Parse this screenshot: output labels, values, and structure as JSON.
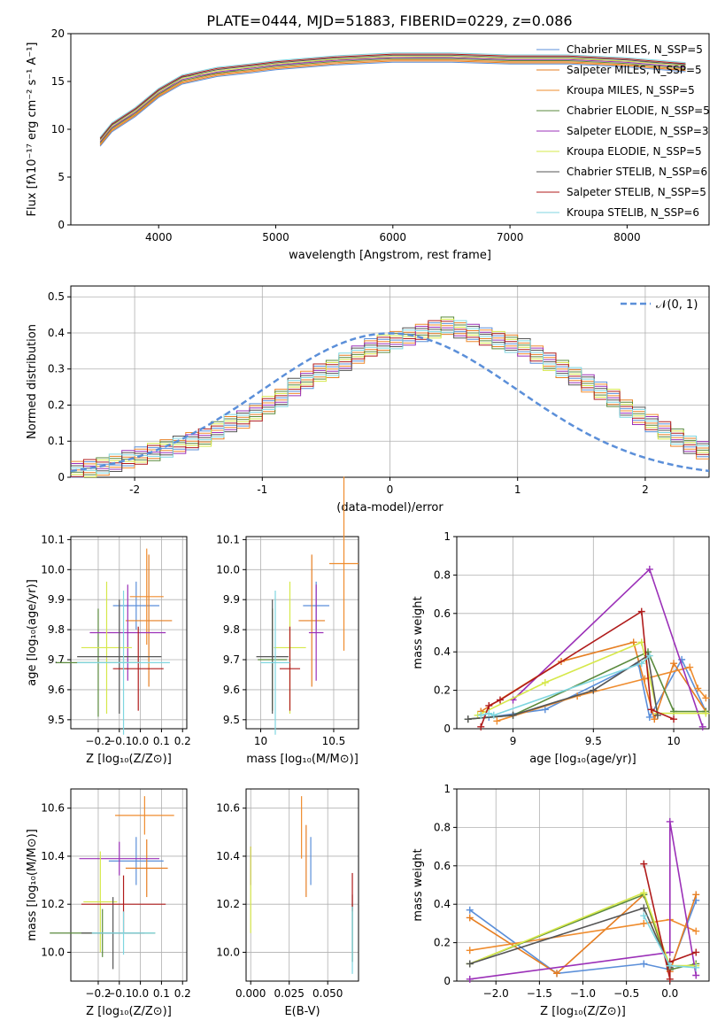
{
  "figure_title": "PLATE=0444, MJD=51883, FIBERID=0229, z=0.086",
  "colors": [
    "#5b8fd9",
    "#e67e22",
    "#ef8c2e",
    "#5a8a3c",
    "#9b30b8",
    "#d6e84a",
    "#555555",
    "#b01b1b",
    "#7fd6e0"
  ],
  "chart_data": [
    {
      "id": "spectrum",
      "type": "line",
      "title": "PLATE=0444, MJD=51883, FIBERID=0229, z=0.086",
      "xlabel": "wavelength [Angstrom, rest frame]",
      "ylabel": "Flux [fλ10⁻¹⁷ erg cm⁻² s⁻¹ A⁻¹]",
      "xlim": [
        3250,
        8700
      ],
      "ylim": [
        0,
        20
      ],
      "xticks": [
        4000,
        5000,
        6000,
        7000,
        8000
      ],
      "yticks": [
        0,
        5,
        10,
        15,
        20
      ],
      "legend_position": "top-right",
      "x": [
        3500,
        3600,
        3800,
        4000,
        4200,
        4500,
        4800,
        5000,
        5500,
        6000,
        6500,
        7000,
        7500,
        8000,
        8500
      ],
      "data_flux": [
        8.5,
        10.5,
        11.5,
        13.5,
        15.5,
        15.8,
        16.5,
        16.8,
        17.3,
        17.5,
        17.6,
        17.4,
        17.4,
        17.1,
        16.8
      ],
      "model_flux": [
        8.7,
        10.2,
        11.8,
        13.8,
        15.2,
        16.0,
        16.4,
        16.7,
        17.2,
        17.5,
        17.5,
        17.3,
        17.3,
        17.0,
        16.5
      ],
      "legend": [
        "Chabrier MILES, N_SSP=5",
        "Salpeter MILES, N_SSP=5",
        "Kroupa MILES, N_SSP=5",
        "Chabrier ELODIE, N_SSP=5",
        "Salpeter ELODIE, N_SSP=3",
        "Kroupa ELODIE, N_SSP=5",
        "Chabrier STELIB, N_SSP=6",
        "Salpeter STELIB, N_SSP=5",
        "Kroupa STELIB, N_SSP=6"
      ]
    },
    {
      "id": "residuals",
      "type": "line",
      "xlabel": "(data-model)/error",
      "ylabel": "Normed distribution",
      "xlim": [
        -2.5,
        2.5
      ],
      "ylim": [
        0,
        0.53
      ],
      "xticks": [
        -2,
        -1,
        0,
        1,
        2
      ],
      "yticks": [
        0.0,
        0.1,
        0.2,
        0.3,
        0.4,
        0.5
      ],
      "grid": true,
      "legend_position": "top-right",
      "legend": [
        "𝒩(0, 1)"
      ],
      "bin_width": 0.1,
      "bin_start": -2.5,
      "histogram_values": [
        0.02,
        0.025,
        0.03,
        0.04,
        0.05,
        0.06,
        0.07,
        0.08,
        0.09,
        0.1,
        0.11,
        0.13,
        0.15,
        0.16,
        0.18,
        0.2,
        0.22,
        0.25,
        0.27,
        0.29,
        0.3,
        0.32,
        0.34,
        0.36,
        0.37,
        0.38,
        0.39,
        0.4,
        0.41,
        0.42,
        0.41,
        0.4,
        0.39,
        0.38,
        0.37,
        0.36,
        0.34,
        0.32,
        0.3,
        0.28,
        0.26,
        0.24,
        0.22,
        0.19,
        0.17,
        0.15,
        0.13,
        0.11,
        0.09,
        0.075
      ]
    },
    {
      "id": "age_vs_Z",
      "type": "scatter",
      "xlabel": "Z [log₁₀(Z/Z⊙)]",
      "ylabel": "age  [log₁₀(age/yr)]",
      "xlim": [
        -0.33,
        0.22
      ],
      "ylim": [
        9.47,
        10.11
      ],
      "xticks": [
        -0.2,
        -0.1,
        0.0,
        0.1,
        0.2
      ],
      "xtick_labels": [
        "−0.2",
        "−0.1",
        "0.0",
        "0.1",
        "0.2"
      ],
      "yticks": [
        9.5,
        9.6,
        9.7,
        9.8,
        9.9,
        10.0,
        10.1
      ],
      "ytick_labels": [
        "9.5",
        "9.6",
        "9.7",
        "9.8",
        "9.9",
        "10.0",
        "10.1"
      ],
      "grid": true,
      "points": [
        {
          "x": -0.02,
          "y": 9.88,
          "xerr": 0.11,
          "yerr": 0.08
        },
        {
          "x": 0.04,
          "y": 9.83,
          "xerr": 0.11,
          "yerr": 0.22
        },
        {
          "x": 0.03,
          "y": 9.91,
          "xerr": 0.08,
          "yerr": 0.16
        },
        {
          "x": -0.2,
          "y": 9.69,
          "xerr": 0.2,
          "yerr": 0.18
        },
        {
          "x": -0.06,
          "y": 9.79,
          "xerr": 0.18,
          "yerr": 0.16
        },
        {
          "x": -0.16,
          "y": 9.74,
          "xerr": 0.12,
          "yerr": 0.22
        },
        {
          "x": -0.1,
          "y": 9.71,
          "xerr": 0.2,
          "yerr": 0.19
        },
        {
          "x": -0.01,
          "y": 9.67,
          "xerr": 0.12,
          "yerr": 0.14
        },
        {
          "x": -0.08,
          "y": 9.69,
          "xerr": 0.22,
          "yerr": 0.24
        }
      ]
    },
    {
      "id": "age_vs_mass",
      "type": "scatter",
      "xlabel": "mass [log₁₀(M/M⊙)]",
      "ylabel": "",
      "xlim": [
        9.9,
        10.67
      ],
      "ylim": [
        9.47,
        10.11
      ],
      "xticks": [
        10.0,
        10.5
      ],
      "xtick_labels": [
        "10",
        "10.5"
      ],
      "yticks": [
        9.5,
        9.6,
        9.7,
        9.8,
        9.9,
        10.0,
        10.1
      ],
      "ytick_labels": [
        "9.5",
        "9.6",
        "9.7",
        "9.8",
        "9.9",
        "10.0",
        "10.1"
      ],
      "grid": true,
      "points": [
        {
          "x": 10.38,
          "y": 9.88,
          "xerr": 0.09,
          "yerr": 0.08
        },
        {
          "x": 10.35,
          "y": 9.83,
          "xerr": 0.09,
          "yerr": 0.22
        },
        {
          "x": 10.57,
          "y": 10.02,
          "xerr": 0.1,
          "yerr": 0.29
        },
        {
          "x": 10.08,
          "y": 9.7,
          "xerr": 0.1,
          "yerr": 0.17
        },
        {
          "x": 10.38,
          "y": 9.79,
          "xerr": 0.05,
          "yerr": 0.16
        },
        {
          "x": 10.2,
          "y": 9.74,
          "xerr": 0.11,
          "yerr": 0.22
        },
        {
          "x": 10.08,
          "y": 9.71,
          "xerr": 0.11,
          "yerr": 0.19
        },
        {
          "x": 10.2,
          "y": 9.67,
          "xerr": 0.07,
          "yerr": 0.14
        },
        {
          "x": 10.1,
          "y": 9.69,
          "xerr": 0.1,
          "yerr": 0.24
        }
      ]
    },
    {
      "id": "mass_weight_vs_age",
      "type": "line",
      "xlabel": "age  [log₁₀(age/yr)]",
      "ylabel": "mass weight",
      "xlim": [
        8.65,
        10.22
      ],
      "ylim": [
        0,
        1
      ],
      "xticks": [
        9.0,
        9.5,
        10.0
      ],
      "yticks": [
        0.0,
        0.2,
        0.4,
        0.6,
        0.8,
        1.0
      ],
      "grid": true,
      "series": [
        {
          "x": [
            8.85,
            9.2,
            9.78,
            9.85,
            10.05,
            10.2
          ],
          "y": [
            0.06,
            0.1,
            0.34,
            0.06,
            0.36,
            0.09
          ]
        },
        {
          "x": [
            8.8,
            9.3,
            9.75,
            9.88,
            10.0,
            10.2
          ],
          "y": [
            0.09,
            0.35,
            0.45,
            0.05,
            0.34,
            0.09
          ]
        },
        {
          "x": [
            8.9,
            9.4,
            9.82,
            10.1,
            10.15,
            10.2
          ],
          "y": [
            0.04,
            0.17,
            0.26,
            0.32,
            0.21,
            0.16
          ]
        },
        {
          "x": [
            8.72,
            9.0,
            9.84,
            10.0,
            10.2
          ],
          "y": [
            0.05,
            0.07,
            0.4,
            0.09,
            0.09
          ]
        },
        {
          "x": [
            9.0,
            9.85,
            10.18
          ],
          "y": [
            0.15,
            0.83,
            0.01
          ]
        },
        {
          "x": [
            8.78,
            9.2,
            9.8,
            9.9,
            10.2
          ],
          "y": [
            0.07,
            0.24,
            0.45,
            0.08,
            0.08
          ]
        },
        {
          "x": [
            8.72,
            9.0,
            9.5,
            9.84,
            9.9
          ],
          "y": [
            0.05,
            0.07,
            0.2,
            0.38,
            0.07
          ]
        },
        {
          "x": [
            8.8,
            8.85,
            8.92,
            9.8,
            9.86,
            10.0
          ],
          "y": [
            0.01,
            0.12,
            0.15,
            0.61,
            0.1,
            0.05
          ]
        },
        {
          "x": [
            8.8,
            8.85,
            8.88,
            9.8,
            9.85
          ],
          "y": [
            0.07,
            0.08,
            0.07,
            0.34,
            0.38
          ]
        }
      ]
    },
    {
      "id": "mass_vs_Z",
      "type": "scatter",
      "xlabel": "Z [log₁₀(Z/Z⊙)]",
      "ylabel": "mass [log₁₀(M/M⊙)]",
      "xlim": [
        -0.33,
        0.22
      ],
      "ylim": [
        9.88,
        10.68
      ],
      "xticks": [
        -0.2,
        -0.1,
        0.0,
        0.1,
        0.2
      ],
      "xtick_labels": [
        "−0.2",
        "−0.1",
        "0.0",
        "0.1",
        "0.2"
      ],
      "yticks": [
        10.0,
        10.2,
        10.4,
        10.6
      ],
      "ytick_labels": [
        "10.0",
        "10.2",
        "10.4",
        "10.6"
      ],
      "grid": true,
      "points": [
        {
          "x": -0.02,
          "y": 10.38,
          "xerr": 0.13,
          "yerr": 0.1
        },
        {
          "x": 0.03,
          "y": 10.35,
          "xerr": 0.1,
          "yerr": 0.12
        },
        {
          "x": 0.02,
          "y": 10.57,
          "xerr": 0.14,
          "yerr": 0.08
        },
        {
          "x": -0.18,
          "y": 10.08,
          "xerr": 0.25,
          "yerr": 0.1
        },
        {
          "x": -0.1,
          "y": 10.39,
          "xerr": 0.19,
          "yerr": 0.07
        },
        {
          "x": -0.19,
          "y": 10.21,
          "xerr": 0.08,
          "yerr": 0.21
        },
        {
          "x": -0.13,
          "y": 10.08,
          "xerr": 0.15,
          "yerr": 0.15
        },
        {
          "x": -0.08,
          "y": 10.2,
          "xerr": 0.2,
          "yerr": 0.12
        },
        {
          "x": -0.08,
          "y": 10.08,
          "xerr": 0.15,
          "yerr": 0.09
        }
      ]
    },
    {
      "id": "mass_vs_ebv",
      "type": "scatter",
      "xlabel": "E(B-V)",
      "ylabel": "",
      "xlim": [
        -0.003,
        0.07
      ],
      "ylim": [
        9.88,
        10.68
      ],
      "xticks": [
        0.0,
        0.025,
        0.05
      ],
      "xtick_labels": [
        "0.000",
        "0.025",
        "0.050"
      ],
      "yticks": [
        10.0,
        10.2,
        10.4,
        10.6
      ],
      "ytick_labels": [
        "10.0",
        "10.2",
        "10.4",
        "10.6"
      ],
      "grid": true,
      "points": [
        {
          "x": 0.039,
          "y": 10.38,
          "yerr": 0.1
        },
        {
          "x": 0.036,
          "y": 10.38,
          "yerr": 0.15
        },
        {
          "x": 0.033,
          "y": 10.52,
          "yerr": 0.13
        },
        {
          "x": 0.066,
          "y": 10.08,
          "yerr": 0.12
        },
        {
          "x": 0.0,
          "y": 10.36,
          "yerr": 0.08
        },
        {
          "x": 0.0,
          "y": 10.26,
          "yerr": 0.18
        },
        {
          "x": 0.066,
          "y": 10.1,
          "yerr": 0.14
        },
        {
          "x": 0.066,
          "y": 10.25,
          "yerr": 0.08
        },
        {
          "x": 0.066,
          "y": 10.05,
          "yerr": 0.14
        }
      ]
    },
    {
      "id": "mass_weight_vs_Z",
      "type": "line",
      "xlabel": "Z [log₁₀(Z/Z⊙)]",
      "ylabel": "mass weight",
      "xlim": [
        -2.45,
        0.45
      ],
      "ylim": [
        0,
        1
      ],
      "xticks": [
        -2.0,
        -1.5,
        -1.0,
        -0.5,
        0.0
      ],
      "xtick_labels": [
        "−2.0",
        "−1.5",
        "−1.0",
        "−0.5",
        "0.0"
      ],
      "yticks": [
        0.0,
        0.2,
        0.4,
        0.6,
        0.8,
        1.0
      ],
      "grid": true,
      "series": [
        {
          "x": [
            -2.3,
            -1.3,
            -0.3,
            0.0,
            0.3
          ],
          "y": [
            0.37,
            0.04,
            0.09,
            0.06,
            0.42
          ]
        },
        {
          "x": [
            -2.3,
            -1.3,
            -0.3,
            0.0,
            0.3
          ],
          "y": [
            0.33,
            0.04,
            0.45,
            0.05,
            0.45
          ]
        },
        {
          "x": [
            -2.3,
            -0.3,
            0.0,
            0.3
          ],
          "y": [
            0.16,
            0.3,
            0.32,
            0.26
          ]
        },
        {
          "x": [
            -2.3,
            -0.3,
            0.0,
            0.3
          ],
          "y": [
            0.09,
            0.45,
            0.06,
            0.09
          ]
        },
        {
          "x": [
            -2.3,
            0.0,
            0.0,
            0.3
          ],
          "y": [
            0.01,
            0.15,
            0.83,
            0.03
          ]
        },
        {
          "x": [
            -2.3,
            -0.3,
            0.0,
            0.3
          ],
          "y": [
            0.09,
            0.46,
            0.08,
            0.08
          ]
        },
        {
          "x": [
            -2.3,
            -0.3,
            0.0
          ],
          "y": [
            0.09,
            0.38,
            0.07
          ]
        },
        {
          "x": [
            -0.3,
            0.0,
            0.0,
            0.3
          ],
          "y": [
            0.61,
            0.01,
            0.1,
            0.15
          ]
        },
        {
          "x": [
            -0.3,
            0.0,
            0.3
          ],
          "y": [
            0.34,
            0.08,
            0.07
          ]
        }
      ]
    }
  ]
}
